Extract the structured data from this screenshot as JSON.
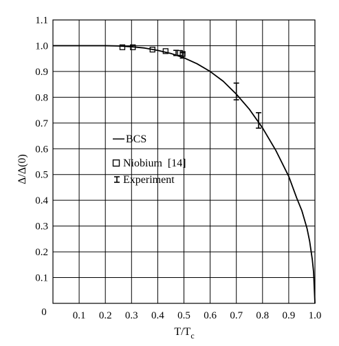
{
  "chart_data": {
    "type": "line",
    "xlabel": {
      "main": "T/T",
      "sub": "c"
    },
    "ylabel": "Δ/Δ(0)",
    "xlim": [
      0,
      1.0
    ],
    "ylim": [
      0,
      1.1
    ],
    "origin_label": "0",
    "x_ticks": [
      "0.1",
      "0.2",
      "0.3",
      "0.4",
      "0.5",
      "0.6",
      "0.7",
      "0.8",
      "0.9",
      "1.0"
    ],
    "x_tick_values": [
      0.1,
      0.2,
      0.3,
      0.4,
      0.5,
      0.6,
      0.7,
      0.8,
      0.9,
      1.0
    ],
    "y_ticks": [
      "0.1",
      "0.2",
      "0.3",
      "0.4",
      "0.5",
      "0.6",
      "0.7",
      "0.8",
      "0.9",
      "1.0",
      "1.1"
    ],
    "y_tick_values": [
      0.1,
      0.2,
      0.3,
      0.4,
      0.5,
      0.6,
      0.7,
      0.8,
      0.9,
      1.0,
      1.1
    ],
    "grid": true,
    "legend_position": "middle-left",
    "series": [
      {
        "name": "BCS",
        "kind": "line",
        "x": [
          0,
          0.1,
          0.2,
          0.25,
          0.3,
          0.35,
          0.4,
          0.45,
          0.5,
          0.55,
          0.6,
          0.65,
          0.7,
          0.75,
          0.8,
          0.85,
          0.9,
          0.93,
          0.95,
          0.97,
          0.98,
          0.99,
          0.995,
          1.0
        ],
        "y": [
          1.0,
          1.0,
          1.0,
          0.999,
          0.996,
          0.991,
          0.982,
          0.97,
          0.953,
          0.93,
          0.9,
          0.862,
          0.812,
          0.753,
          0.681,
          0.595,
          0.493,
          0.41,
          0.36,
          0.29,
          0.24,
          0.17,
          0.12,
          0.0
        ]
      },
      {
        "name": "Niobium  [14]",
        "kind": "markers",
        "x": [
          0.265,
          0.305,
          0.38,
          0.43,
          0.485,
          0.495
        ],
        "y": [
          0.994,
          0.994,
          0.985,
          0.979,
          0.972,
          0.968
        ]
      },
      {
        "name": "Experiment",
        "kind": "errorbars",
        "points": [
          {
            "x": 0.47,
            "y": 0.972,
            "low": 0.962,
            "high": 0.982
          },
          {
            "x": 0.495,
            "y": 0.963,
            "low": 0.952,
            "high": 0.973
          },
          {
            "x": 0.7,
            "y": 0.82,
            "low": 0.79,
            "high": 0.855
          },
          {
            "x": 0.785,
            "y": 0.71,
            "low": 0.68,
            "high": 0.74
          }
        ]
      }
    ],
    "colors": {
      "line": "#000000",
      "grid": "#000000",
      "background": "#ffffff"
    }
  }
}
